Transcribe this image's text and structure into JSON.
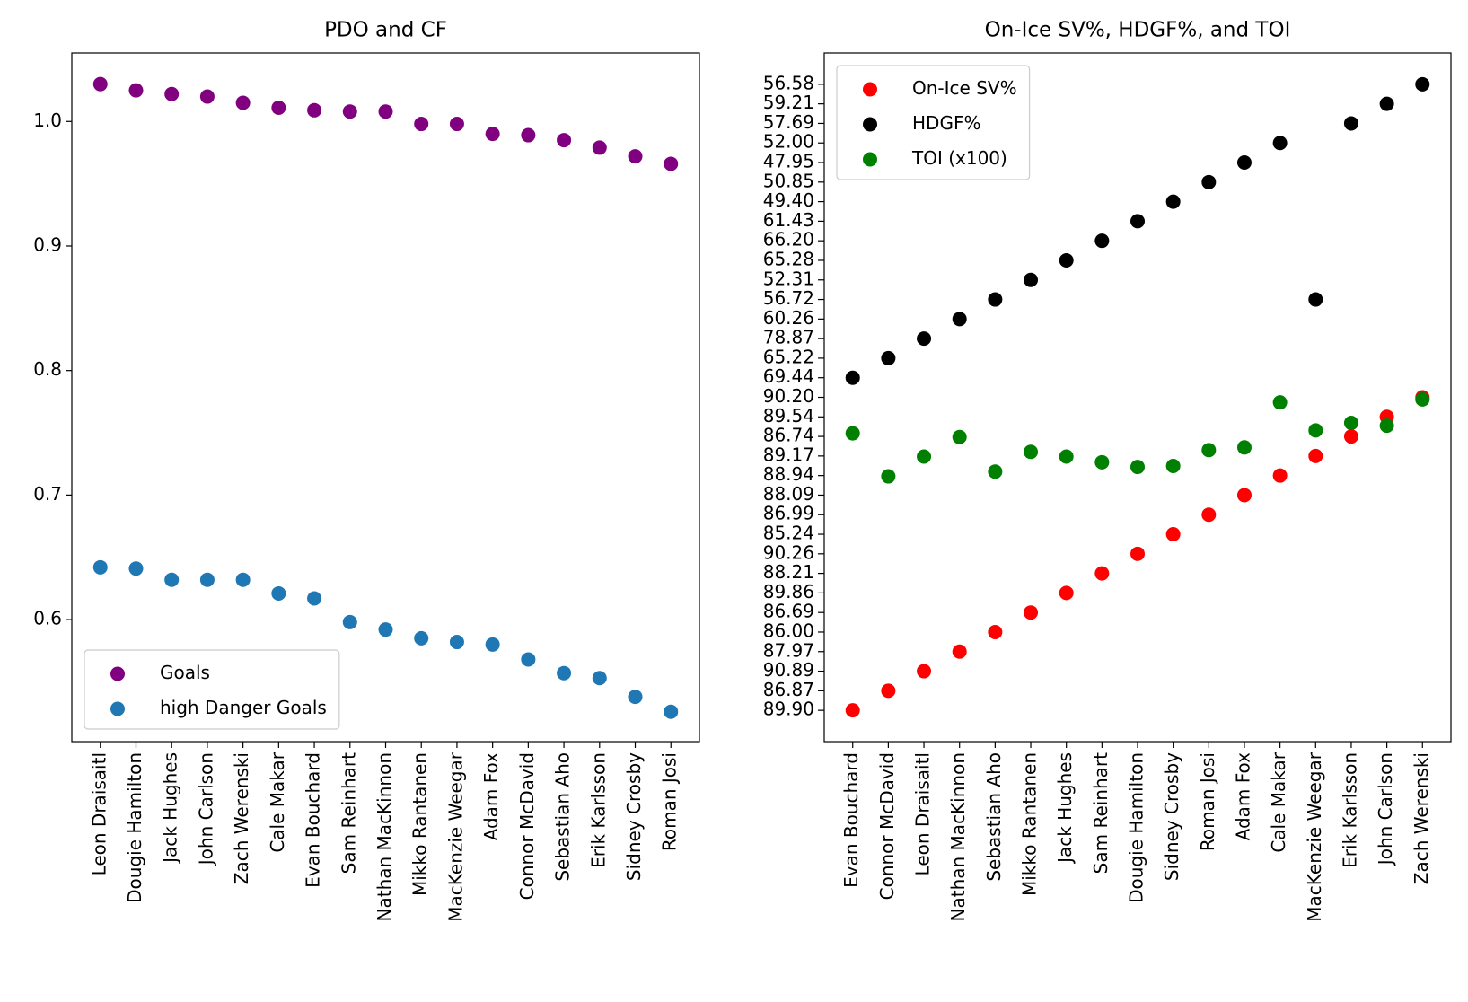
{
  "chart_data": [
    {
      "type": "scatter",
      "title": "PDO and CF",
      "categories": [
        "Leon Draisaitl",
        "Dougie Hamilton",
        "Jack Hughes",
        "John Carlson",
        "Zach Werenski",
        "Cale Makar",
        "Evan Bouchard",
        "Sam Reinhart",
        "Nathan MacKinnon",
        "Mikko Rantanen",
        "MacKenzie Weegar",
        "Adam Fox",
        "Connor McDavid",
        "Sebastian Aho",
        "Erik Karlsson",
        "Sidney Crosby",
        "Roman Josi"
      ],
      "series": [
        {
          "name": "Goals",
          "color": "#800080",
          "values": [
            1.03,
            1.025,
            1.022,
            1.02,
            1.015,
            1.011,
            1.009,
            1.008,
            1.008,
            0.998,
            0.998,
            0.99,
            0.989,
            0.985,
            0.979,
            0.972,
            0.966
          ]
        },
        {
          "name": "high Danger Goals",
          "color": "#1f77b4",
          "values": [
            0.642,
            0.641,
            0.632,
            0.632,
            0.632,
            0.621,
            0.617,
            0.598,
            0.592,
            0.585,
            0.582,
            0.58,
            0.568,
            0.557,
            0.553,
            0.538,
            0.526
          ]
        }
      ],
      "xlim": [
        -0.8,
        16.8
      ],
      "ylim": [
        0.502,
        1.055
      ],
      "yticks": [
        0.6,
        0.7,
        0.8,
        0.9,
        {
          "value": 1,
          "label": "1.0"
        }
      ],
      "legend": "lower left"
    },
    {
      "type": "scatter",
      "title": "On-Ice SV%, HDGF%, and TOI",
      "categories": [
        "Evan Bouchard",
        "Connor McDavid",
        "Leon Draisaitl",
        "Nathan MacKinnon",
        "Sebastian Aho",
        "Mikko Rantanen",
        "Jack Hughes",
        "Sam Reinhart",
        "Dougie Hamilton",
        "Sidney Crosby",
        "Roman Josi",
        "Adam Fox",
        "Cale Makar",
        "MacKenzie Weegar",
        "Erik Karlsson",
        "John Carlson",
        "Zach Werenski"
      ],
      "series": [
        {
          "name": "On-Ice SV%",
          "color": "#ff0000",
          "values": [
            0,
            1,
            2,
            3,
            4,
            5,
            6,
            7,
            8,
            9,
            10,
            11,
            12,
            13,
            14,
            15,
            16
          ]
        },
        {
          "name": "HDGF%",
          "color": "#000000",
          "values": [
            17,
            18,
            19,
            20,
            21,
            22,
            23,
            24,
            25,
            26,
            27,
            28,
            29,
            21,
            30,
            31,
            32
          ]
        },
        {
          "name": "TOI (x100)",
          "color": "#008000",
          "values": [
            14.16,
            11.96,
            12.97,
            13.97,
            12.2,
            13.21,
            12.97,
            12.68,
            12.44,
            12.49,
            13.3,
            13.44,
            15.74,
            14.31,
            14.69,
            14.55,
            15.89
          ]
        }
      ],
      "xlim": [
        -0.8,
        16.8
      ],
      "ylim": [
        -1.6,
        33.6
      ],
      "yticks": [
        {
          "value": 0,
          "label": "89.90"
        },
        {
          "value": 1,
          "label": "86.87"
        },
        {
          "value": 2,
          "label": "90.89"
        },
        {
          "value": 3,
          "label": "87.97"
        },
        {
          "value": 4,
          "label": "86.00"
        },
        {
          "value": 5,
          "label": "86.69"
        },
        {
          "value": 6,
          "label": "89.86"
        },
        {
          "value": 7,
          "label": "88.21"
        },
        {
          "value": 8,
          "label": "90.26"
        },
        {
          "value": 9,
          "label": "85.24"
        },
        {
          "value": 10,
          "label": "86.99"
        },
        {
          "value": 11,
          "label": "88.09"
        },
        {
          "value": 12,
          "label": "88.94"
        },
        {
          "value": 13,
          "label": "89.17"
        },
        {
          "value": 14,
          "label": "86.74"
        },
        {
          "value": 15,
          "label": "89.54"
        },
        {
          "value": 16,
          "label": "90.20"
        },
        {
          "value": 17,
          "label": "69.44"
        },
        {
          "value": 18,
          "label": "65.22"
        },
        {
          "value": 19,
          "label": "78.87"
        },
        {
          "value": 20,
          "label": "60.26"
        },
        {
          "value": 21,
          "label": "56.72"
        },
        {
          "value": 22,
          "label": "52.31"
        },
        {
          "value": 23,
          "label": "65.28"
        },
        {
          "value": 24,
          "label": "66.20"
        },
        {
          "value": 25,
          "label": "61.43"
        },
        {
          "value": 26,
          "label": "49.40"
        },
        {
          "value": 27,
          "label": "50.85"
        },
        {
          "value": 28,
          "label": "47.95"
        },
        {
          "value": 29,
          "label": "52.00"
        },
        {
          "value": 30,
          "label": "57.69"
        },
        {
          "value": 31,
          "label": "59.21"
        },
        {
          "value": 32,
          "label": "56.58"
        }
      ],
      "legend": "upper left"
    }
  ]
}
